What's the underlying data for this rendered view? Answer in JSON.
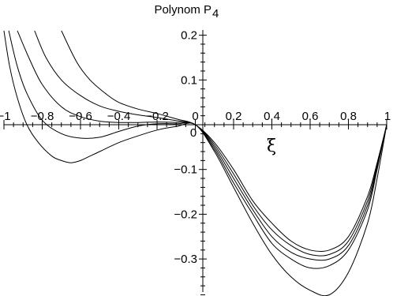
{
  "chart_data": {
    "type": "line",
    "title": "Polynom P",
    "title_subscript": "4",
    "xlabel": "ξ",
    "ylabel": "",
    "xlim": [
      -1,
      1
    ],
    "ylim": [
      -0.39,
      0.21
    ],
    "x_ticks": [
      -1,
      -0.8,
      -0.6,
      -0.4,
      -0.2,
      0,
      0.2,
      0.4,
      0.6,
      0.8,
      1
    ],
    "x_tick_labels": [
      "−1",
      "−0.8",
      "−0.6",
      "−0.4",
      "−0.2",
      "0",
      "0.2",
      "0.4",
      "0.6",
      "0.8",
      "1"
    ],
    "y_ticks": [
      0.2,
      0.1,
      -0.1,
      -0.2,
      -0.3
    ],
    "y_tick_labels": [
      "0.2",
      "0.1",
      "−0.1",
      "−0.2",
      "−0.3"
    ],
    "grid": false,
    "legend": "none",
    "series": [
      {
        "x": [
          -0.7,
          -0.62,
          -0.55,
          -0.47,
          -0.4,
          -0.3,
          -0.2,
          -0.1,
          0,
          0.1,
          0.2,
          0.3,
          0.4,
          0.5,
          0.6,
          0.7,
          0.8,
          0.9,
          0.95,
          1.0
        ],
        "y": [
          0.21,
          0.14,
          0.1,
          0.07,
          0.05,
          0.035,
          0.025,
          0.013,
          0,
          -0.04,
          -0.1,
          -0.17,
          -0.22,
          -0.26,
          -0.28,
          -0.28,
          -0.25,
          -0.16,
          -0.085,
          0
        ]
      },
      {
        "x": [
          -0.84,
          -0.78,
          -0.7,
          -0.6,
          -0.5,
          -0.4,
          -0.3,
          -0.2,
          -0.1,
          0,
          0.1,
          0.2,
          0.3,
          0.4,
          0.5,
          0.6,
          0.7,
          0.8,
          0.9,
          0.95,
          1.0
        ],
        "y": [
          0.21,
          0.15,
          0.1,
          0.065,
          0.042,
          0.03,
          0.022,
          0.016,
          0.009,
          0,
          -0.045,
          -0.11,
          -0.18,
          -0.235,
          -0.27,
          -0.29,
          -0.29,
          -0.26,
          -0.17,
          -0.09,
          0
        ]
      },
      {
        "x": [
          -0.93,
          -0.87,
          -0.8,
          -0.7,
          -0.6,
          -0.5,
          -0.4,
          -0.3,
          -0.2,
          -0.1,
          0,
          0.1,
          0.2,
          0.3,
          0.4,
          0.5,
          0.6,
          0.7,
          0.8,
          0.9,
          0.95,
          1.0
        ],
        "y": [
          0.21,
          0.15,
          0.09,
          0.04,
          0.018,
          0.008,
          0.005,
          0.005,
          0.006,
          0.005,
          0,
          -0.05,
          -0.12,
          -0.19,
          -0.25,
          -0.285,
          -0.3,
          -0.3,
          -0.27,
          -0.18,
          -0.095,
          0
        ]
      },
      {
        "x": [
          -0.975,
          -0.93,
          -0.88,
          -0.8,
          -0.7,
          -0.6,
          -0.5,
          -0.4,
          -0.3,
          -0.2,
          -0.1,
          0,
          0.1,
          0.2,
          0.3,
          0.4,
          0.5,
          0.6,
          0.7,
          0.8,
          0.9,
          0.95,
          1.0
        ],
        "y": [
          0.21,
          0.13,
          0.07,
          0.01,
          -0.02,
          -0.03,
          -0.028,
          -0.015,
          -0.003,
          0.002,
          0.002,
          0,
          -0.055,
          -0.13,
          -0.2,
          -0.265,
          -0.3,
          -0.32,
          -0.315,
          -0.28,
          -0.19,
          -0.1,
          0
        ]
      },
      {
        "x": [
          -1.0,
          -0.97,
          -0.93,
          -0.88,
          -0.82,
          -0.75,
          -0.7,
          -0.65,
          -0.6,
          -0.55,
          -0.5,
          -0.4,
          -0.3,
          -0.2,
          -0.1,
          0,
          0.1,
          0.2,
          0.3,
          0.4,
          0.5,
          0.6,
          0.7,
          0.8,
          0.9,
          0.95,
          1.0
        ],
        "y": [
          0.21,
          0.13,
          0.06,
          0.0,
          -0.04,
          -0.07,
          -0.08,
          -0.085,
          -0.08,
          -0.07,
          -0.06,
          -0.04,
          -0.025,
          -0.012,
          -0.004,
          0,
          -0.06,
          -0.14,
          -0.22,
          -0.29,
          -0.34,
          -0.37,
          -0.38,
          -0.33,
          -0.22,
          -0.12,
          0
        ]
      }
    ]
  }
}
